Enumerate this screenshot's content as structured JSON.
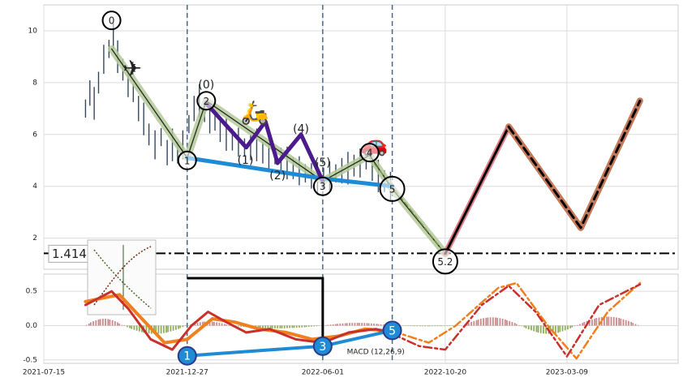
{
  "chart_data": [
    {
      "panel": "price",
      "type": "line",
      "x_axis_dates": true,
      "xlim": [
        "2021-07-15",
        "2023-07-15"
      ],
      "ylim": [
        0.8,
        11
      ],
      "yticks": [
        2,
        4,
        6,
        8,
        10
      ],
      "grid": true,
      "horizontal_level": {
        "value": 1.414,
        "label": "1.4140"
      },
      "event_lines": [
        "2021-12-27",
        "2022-06-01",
        "2022-08-20"
      ],
      "price_series": [
        [
          "2021-09-01",
          7.0
        ],
        [
          "2021-09-06",
          7.6
        ],
        [
          "2021-09-11",
          7.2
        ],
        [
          "2021-09-16",
          8.0
        ],
        [
          "2021-09-22",
          8.9
        ],
        [
          "2021-09-28",
          9.3
        ],
        [
          "2021-10-03",
          9.8
        ],
        [
          "2021-10-08",
          9.0
        ],
        [
          "2021-10-14",
          8.5
        ],
        [
          "2021-10-20",
          8.0
        ],
        [
          "2021-10-26",
          7.6
        ],
        [
          "2021-11-01",
          7.0
        ],
        [
          "2021-11-07",
          6.6
        ],
        [
          "2021-11-13",
          6.0
        ],
        [
          "2021-11-20",
          5.6
        ],
        [
          "2021-11-27",
          5.9
        ],
        [
          "2021-12-04",
          5.3
        ],
        [
          "2021-12-10",
          5.6
        ],
        [
          "2021-12-16",
          5.3
        ],
        [
          "2021-12-22",
          5.6
        ],
        [
          "2021-12-29",
          6.4
        ],
        [
          "2022-01-04",
          7.0
        ],
        [
          "2022-01-10",
          7.3
        ],
        [
          "2022-01-16",
          6.9
        ],
        [
          "2022-01-22",
          6.6
        ],
        [
          "2022-01-28",
          6.5
        ],
        [
          "2022-02-03",
          6.2
        ],
        [
          "2022-02-10",
          6.0
        ],
        [
          "2022-02-17",
          5.8
        ],
        [
          "2022-02-24",
          5.7
        ],
        [
          "2022-03-03",
          5.5
        ],
        [
          "2022-03-10",
          5.5
        ],
        [
          "2022-03-17",
          5.6
        ],
        [
          "2022-03-24",
          5.3
        ],
        [
          "2022-03-31",
          5.1
        ],
        [
          "2022-04-07",
          5.2
        ],
        [
          "2022-04-14",
          5.0
        ],
        [
          "2022-04-21",
          4.9
        ],
        [
          "2022-04-28",
          4.7
        ],
        [
          "2022-05-05",
          4.6
        ],
        [
          "2022-05-12",
          4.5
        ],
        [
          "2022-05-19",
          4.4
        ],
        [
          "2022-05-26",
          4.3
        ],
        [
          "2022-06-02",
          4.3
        ],
        [
          "2022-06-09",
          4.4
        ],
        [
          "2022-06-16",
          4.5
        ],
        [
          "2022-06-23",
          4.6
        ],
        [
          "2022-06-30",
          4.7
        ],
        [
          "2022-07-07",
          4.8
        ],
        [
          "2022-07-14",
          4.9
        ],
        [
          "2022-07-21",
          5.0
        ],
        [
          "2022-07-28",
          4.7
        ],
        [
          "2022-08-04",
          4.4
        ],
        [
          "2022-08-11",
          4.2
        ],
        [
          "2022-08-18",
          4.0
        ]
      ],
      "wave_line": [
        [
          "2021-10-01",
          9.3
        ],
        [
          "2021-12-27",
          5.1
        ],
        [
          "2022-01-18",
          7.3
        ],
        [
          "2022-06-01",
          4.2
        ],
        [
          "2022-07-25",
          5.2
        ],
        [
          "2022-08-20",
          3.9
        ],
        [
          "2022-10-20",
          1.4
        ]
      ],
      "impulse_path": [
        [
          "2022-01-18",
          7.2
        ],
        [
          "2022-03-05",
          5.5
        ],
        [
          "2022-03-27",
          6.5
        ],
        [
          "2022-04-10",
          4.9
        ],
        [
          "2022-05-07",
          6.0
        ],
        [
          "2022-06-01",
          4.2
        ]
      ],
      "trend_line": [
        [
          "2021-12-27",
          5.1
        ],
        [
          "2022-06-01",
          4.3
        ],
        [
          "2022-08-20",
          4.0
        ]
      ],
      "dashed_green_line": [
        [
          "2022-07-25",
          5.1
        ],
        [
          "2022-10-20",
          1.4
        ]
      ],
      "projection_red": [
        [
          "2022-10-20",
          1.4
        ],
        [
          "2023-01-01",
          6.3
        ]
      ],
      "projection_brown": [
        [
          "2023-01-01",
          6.3
        ],
        [
          "2023-03-25",
          2.4
        ],
        [
          "2023-06-01",
          7.3
        ]
      ],
      "markers": [
        {
          "date": "2021-10-01",
          "value": 10.4,
          "label": "0"
        },
        {
          "date": "2021-12-27",
          "value": 5.0,
          "label": "1"
        },
        {
          "date": "2022-01-18",
          "value": 7.3,
          "label": "2"
        },
        {
          "date": "2022-06-01",
          "value": 4.0,
          "label": "3"
        },
        {
          "date": "2022-07-25",
          "value": 5.3,
          "label": "4"
        },
        {
          "date": "2022-08-20",
          "value": 3.9,
          "label": "5"
        },
        {
          "date": "2022-10-20",
          "value": 1.1,
          "label": "5.2"
        }
      ],
      "wave_labels": [
        {
          "date": "2022-01-18",
          "value": 7.9,
          "label": "(0)"
        },
        {
          "date": "2022-03-04",
          "value": 5.0,
          "label": "(1)"
        },
        {
          "date": "2022-04-10",
          "value": 4.4,
          "label": "(2)"
        },
        {
          "date": "2022-05-07",
          "value": 6.2,
          "label": "(4)"
        },
        {
          "date": "2022-06-01",
          "value": 4.9,
          "label": "(5)"
        }
      ],
      "icons": [
        {
          "name": "airplane-icon",
          "glyph": "✈",
          "date": "2021-10-25",
          "value": 8.5
        },
        {
          "name": "scooter-icon",
          "glyph": "🛵",
          "date": "2022-03-15",
          "value": 6.8
        },
        {
          "name": "car-icon",
          "glyph": "🚗",
          "date": "2022-07-30",
          "value": 5.6
        }
      ]
    },
    {
      "panel": "macd",
      "type": "line",
      "label": "MACD (12,26,9)",
      "ylim": [
        -0.55,
        0.75
      ],
      "yticks": [
        -0.5,
        0.0,
        0.5
      ],
      "xticks": [
        "2021-07-15",
        "2021-12-27",
        "2022-06-01",
        "2022-10-20",
        "2023-03-09"
      ],
      "macd_line": [
        [
          "2021-09-01",
          0.3
        ],
        [
          "2021-10-01",
          0.5
        ],
        [
          "2021-10-20",
          0.25
        ],
        [
          "2021-11-15",
          -0.2
        ],
        [
          "2021-12-10",
          -0.35
        ],
        [
          "2022-01-01",
          0.0
        ],
        [
          "2022-01-20",
          0.2
        ],
        [
          "2022-02-10",
          0.05
        ],
        [
          "2022-03-05",
          -0.1
        ],
        [
          "2022-04-01",
          -0.05
        ],
        [
          "2022-05-01",
          -0.2
        ],
        [
          "2022-06-01",
          -0.25
        ],
        [
          "2022-07-01",
          -0.1
        ],
        [
          "2022-08-01",
          -0.05
        ],
        [
          "2022-08-20",
          -0.12
        ]
      ],
      "signal_line": [
        [
          "2021-09-01",
          0.35
        ],
        [
          "2021-10-10",
          0.45
        ],
        [
          "2021-11-05",
          0.1
        ],
        [
          "2021-12-01",
          -0.25
        ],
        [
          "2021-12-27",
          -0.2
        ],
        [
          "2022-01-25",
          0.1
        ],
        [
          "2022-02-20",
          0.05
        ],
        [
          "2022-03-20",
          -0.05
        ],
        [
          "2022-04-20",
          -0.1
        ],
        [
          "2022-05-20",
          -0.2
        ],
        [
          "2022-06-20",
          -0.15
        ],
        [
          "2022-07-20",
          -0.05
        ],
        [
          "2022-08-20",
          -0.08
        ]
      ],
      "macd_projection": [
        [
          "2022-08-20",
          -0.12
        ],
        [
          "2022-09-20",
          -0.3
        ],
        [
          "2022-10-20",
          -0.35
        ],
        [
          "2022-12-01",
          0.3
        ],
        [
          "2023-01-01",
          0.58
        ],
        [
          "2023-02-01",
          0.2
        ],
        [
          "2023-03-09",
          -0.45
        ],
        [
          "2023-04-15",
          0.3
        ],
        [
          "2023-06-01",
          0.6
        ]
      ],
      "signal_projection": [
        [
          "2022-08-20",
          -0.08
        ],
        [
          "2022-10-01",
          -0.25
        ],
        [
          "2022-11-01",
          0.0
        ],
        [
          "2022-12-20",
          0.55
        ],
        [
          "2023-01-10",
          0.62
        ],
        [
          "2023-02-15",
          0.0
        ],
        [
          "2023-03-20",
          -0.48
        ],
        [
          "2023-04-25",
          0.2
        ],
        [
          "2023-06-01",
          0.62
        ]
      ],
      "histogram": [
        {
          "start": "2021-09-01",
          "end": "2021-10-15",
          "peak": 0.1
        },
        {
          "start": "2021-10-15",
          "end": "2021-12-27",
          "peak": -0.12
        },
        {
          "start": "2021-12-27",
          "end": "2022-02-15",
          "peak": 0.06
        },
        {
          "start": "2022-02-15",
          "end": "2022-06-01",
          "peak": -0.04
        },
        {
          "start": "2022-06-01",
          "end": "2022-08-20",
          "peak": 0.04
        },
        {
          "start": "2022-08-20",
          "end": "2022-11-10",
          "peak": -0.01
        },
        {
          "start": "2022-11-10",
          "end": "2023-01-15",
          "peak": 0.12
        },
        {
          "start": "2023-01-15",
          "end": "2023-03-20",
          "peak": -0.12
        },
        {
          "start": "2023-03-20",
          "end": "2023-06-01",
          "peak": 0.13
        }
      ],
      "divergence_markers": [
        {
          "date": "2021-12-27",
          "value": -0.44,
          "label": "1"
        },
        {
          "date": "2022-06-01",
          "value": -0.3,
          "label": "3"
        },
        {
          "date": "2022-08-20",
          "value": -0.07,
          "label": "5"
        }
      ]
    }
  ]
}
